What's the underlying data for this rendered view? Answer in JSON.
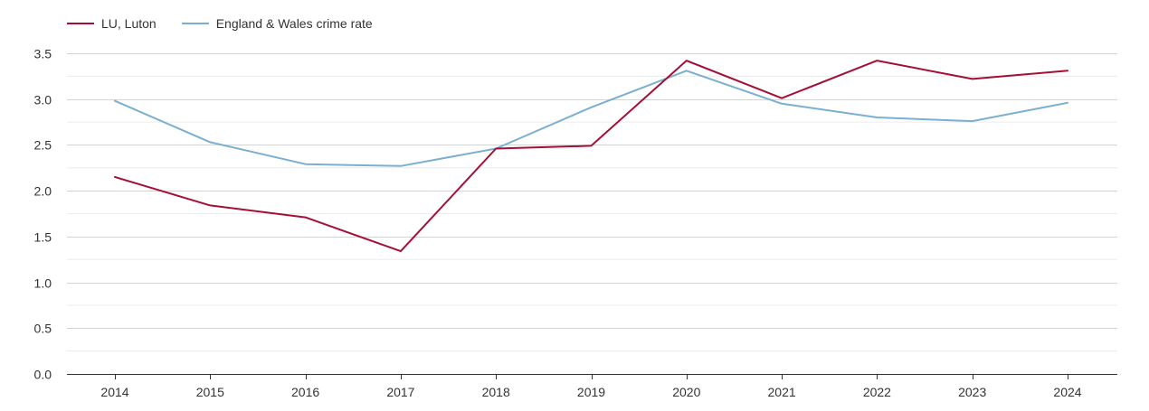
{
  "chart_data": {
    "type": "line",
    "title": "",
    "xlabel": "",
    "ylabel": "",
    "categories": [
      "2014",
      "2015",
      "2016",
      "2017",
      "2018",
      "2019",
      "2020",
      "2021",
      "2022",
      "2023",
      "2024"
    ],
    "y_ticks": [
      "0.0",
      "0.5",
      "1.0",
      "1.5",
      "2.0",
      "2.5",
      "3.0",
      "3.5"
    ],
    "ylim": [
      0,
      3.5
    ],
    "grid": true,
    "legend_position": "top-left",
    "series": [
      {
        "name": "LU, Luton",
        "color": "#a50f35",
        "values": [
          2.15,
          1.84,
          1.71,
          1.34,
          2.46,
          2.49,
          3.42,
          3.01,
          3.42,
          3.22,
          3.31
        ]
      },
      {
        "name": "England & Wales crime rate",
        "color": "#7aafd1",
        "values": [
          2.98,
          2.53,
          2.29,
          2.27,
          2.46,
          2.91,
          3.31,
          2.95,
          2.8,
          2.76,
          2.96
        ]
      }
    ]
  }
}
